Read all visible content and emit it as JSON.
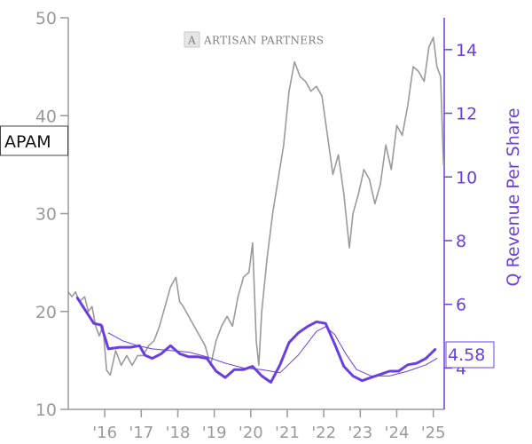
{
  "chart_data": {
    "type": "line",
    "ticker": "APAM",
    "logo_text": "ARTISAN PARTNERS",
    "logo_mark": "A",
    "y_right_label": "Q Revenue Per Share",
    "last_value_label": "4.58",
    "x_ticks": [
      "'16",
      "'17",
      "'18",
      "'19",
      "'20",
      "'21",
      "'22",
      "'23",
      "'24",
      "'25"
    ],
    "x_range": [
      2015.0,
      2025.3
    ],
    "y_left": {
      "ticks": [
        "10",
        "20",
        "30",
        "40",
        "50"
      ],
      "range": [
        10,
        50
      ]
    },
    "y_right": {
      "ticks": [
        "4",
        "6",
        "8",
        "10",
        "12",
        "14"
      ],
      "range": [
        2.7,
        15
      ]
    },
    "colors": {
      "price": "#9a9a9a",
      "revenue": "#6a3fe0",
      "revenue_avg": "#6a3fe0",
      "axis_left": "#9a9a9a",
      "axis_right": "#6a3fe0"
    },
    "series": [
      {
        "key": "price",
        "axis": "left",
        "x": [
          2015.0,
          2015.1,
          2015.2,
          2015.3,
          2015.45,
          2015.55,
          2015.65,
          2015.75,
          2015.85,
          2015.95,
          2016.05,
          2016.15,
          2016.3,
          2016.45,
          2016.6,
          2016.75,
          2016.9,
          2017.05,
          2017.2,
          2017.35,
          2017.5,
          2017.65,
          2017.8,
          2017.95,
          2018.05,
          2018.15,
          2018.3,
          2018.45,
          2018.6,
          2018.75,
          2018.9,
          2019.05,
          2019.2,
          2019.35,
          2019.5,
          2019.65,
          2019.8,
          2019.95,
          2020.05,
          2020.15,
          2020.22,
          2020.3,
          2020.45,
          2020.6,
          2020.75,
          2020.9,
          2021.05,
          2021.2,
          2021.35,
          2021.5,
          2021.65,
          2021.8,
          2021.95,
          2022.1,
          2022.25,
          2022.4,
          2022.55,
          2022.7,
          2022.8,
          2022.95,
          2023.1,
          2023.25,
          2023.4,
          2023.55,
          2023.7,
          2023.85,
          2024.0,
          2024.15,
          2024.3,
          2024.45,
          2024.6,
          2024.75,
          2024.88,
          2025.0,
          2025.1,
          2025.2,
          2025.28
        ],
        "values": [
          22,
          21.5,
          22,
          21,
          21.5,
          20,
          20.5,
          18.5,
          17.5,
          18.5,
          14,
          13.5,
          16,
          14.5,
          15.5,
          14.5,
          15.5,
          15.5,
          16.5,
          17,
          18.5,
          20.5,
          22.5,
          23.5,
          21,
          20.5,
          19.5,
          18.5,
          17.5,
          16.5,
          14.5,
          17,
          18.5,
          19.5,
          18.5,
          21.5,
          23.5,
          24,
          27,
          17,
          14.5,
          20,
          25.5,
          30,
          33.5,
          37,
          42.5,
          45.5,
          44,
          43.5,
          42.5,
          43,
          42,
          38,
          34,
          36,
          32,
          26.5,
          30,
          32,
          34.5,
          33.5,
          31,
          33,
          37,
          34.5,
          39,
          38,
          41,
          45,
          44.5,
          43.5,
          47,
          48,
          45,
          44,
          35
        ]
      },
      {
        "key": "revenue",
        "axis": "right",
        "x": [
          2015.25,
          2015.7,
          2015.9,
          2016.1,
          2016.4,
          2016.7,
          2016.95,
          2017.1,
          2017.3,
          2017.55,
          2017.8,
          2018.05,
          2018.3,
          2018.55,
          2018.8,
          2019.05,
          2019.3,
          2019.55,
          2019.8,
          2020.05,
          2020.3,
          2020.55,
          2020.8,
          2021.05,
          2021.3,
          2021.55,
          2021.8,
          2022.05,
          2022.3,
          2022.55,
          2022.8,
          2023.05,
          2023.3,
          2023.55,
          2023.8,
          2024.05,
          2024.3,
          2024.55,
          2024.8,
          2025.05
        ],
        "values": [
          6.2,
          5.4,
          5.35,
          4.6,
          4.65,
          4.65,
          4.7,
          4.4,
          4.3,
          4.45,
          4.7,
          4.45,
          4.35,
          4.35,
          4.3,
          3.9,
          3.7,
          3.95,
          3.95,
          4.05,
          3.75,
          3.55,
          4.1,
          4.8,
          5.1,
          5.3,
          5.45,
          5.4,
          4.75,
          4.05,
          3.75,
          3.6,
          3.7,
          3.8,
          3.9,
          3.9,
          4.1,
          4.15,
          4.3,
          4.58
        ]
      },
      {
        "key": "revenue_avg",
        "axis": "right",
        "x": [
          2016.1,
          2016.5,
          2016.9,
          2017.3,
          2017.8,
          2018.3,
          2018.8,
          2019.3,
          2019.8,
          2020.3,
          2020.8,
          2021.3,
          2021.8,
          2022.05,
          2022.3,
          2022.6,
          2022.9,
          2023.3,
          2023.8,
          2024.3,
          2024.8,
          2025.1
        ],
        "values": [
          5.1,
          4.85,
          4.7,
          4.6,
          4.55,
          4.5,
          4.35,
          4.15,
          4.0,
          3.95,
          3.85,
          4.4,
          5.15,
          5.3,
          5.05,
          4.45,
          3.95,
          3.75,
          3.75,
          3.9,
          4.1,
          4.3
        ]
      }
    ]
  }
}
